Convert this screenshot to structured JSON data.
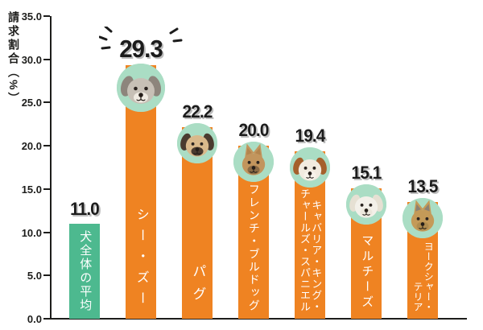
{
  "chart_data": {
    "type": "bar",
    "title": "",
    "ylabel": "請求割合（%）",
    "xlabel": "",
    "ylim": [
      0,
      35
    ],
    "ytick_step": 5,
    "ytick_labels": [
      "35.0",
      "30.0",
      "25.0",
      "20.0",
      "15.0",
      "10.0",
      "5.0",
      "0.0"
    ],
    "grid": false,
    "legend": "none",
    "categories": [
      "犬全体の平均",
      "シー・ズー",
      "パグ",
      "フレンチ・ブルドッグ",
      "キャバリア・キング・チャールズ・スパニエル",
      "マルチーズ",
      "ヨークシャー・テリア"
    ],
    "values": [
      11.0,
      29.3,
      22.2,
      20.0,
      19.4,
      15.1,
      13.5
    ],
    "value_labels": [
      "11.0",
      "29.3",
      "22.2",
      "20.0",
      "19.4",
      "15.1",
      "13.5"
    ],
    "label_lines": [
      [
        "犬全体の平均"
      ],
      [
        "シー・ズー"
      ],
      [
        "パグ"
      ],
      [
        "フレンチ・ブルドッグ"
      ],
      [
        "キャバリア・キング・",
        "チャールズ・スパニエル"
      ],
      [
        "マルチーズ"
      ],
      [
        "ヨークシャー・",
        "テリア"
      ]
    ],
    "emphasized_index": 1,
    "colors": {
      "bar": "#ef8322",
      "average_bar": "#4db98f",
      "photo_circle_bg": "#aaddc4",
      "value_text": "#1c1c1c",
      "bar_label_text": "#ffffff",
      "axis": "#1d1d1b"
    },
    "dog_photos": [
      null,
      {
        "name": "shih-tzu-photo",
        "ears": "floppy",
        "fur": "#c7c0b6",
        "accent": "#8d857c",
        "muzzle": "#f0ebe2"
      },
      {
        "name": "pug-photo",
        "ears": "floppy",
        "fur": "#d9b98b",
        "accent": "#4a3b2f",
        "muzzle": "#4a3b2f"
      },
      {
        "name": "french-bulldog-photo",
        "ears": "upright",
        "fur": "#c2955d",
        "accent": "#b3854e",
        "muzzle": "#8a6a45"
      },
      {
        "name": "cavalier-king-charles-spaniel-photo",
        "ears": "floppy",
        "fur": "#f2ebe0",
        "accent": "#a5602c",
        "muzzle": "#f7f2ea"
      },
      {
        "name": "maltese-photo",
        "ears": "floppy",
        "fur": "#f3f0e9",
        "accent": "#e6e0d3",
        "muzzle": "#ece7dc"
      },
      {
        "name": "yorkshire-terrier-photo",
        "ears": "upright",
        "fur": "#c49a58",
        "accent": "#8b8174",
        "muzzle": "#b08c4e"
      }
    ]
  }
}
